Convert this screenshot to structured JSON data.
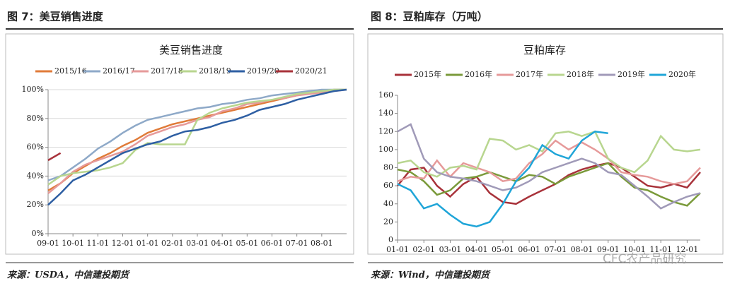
{
  "captions": [
    "图 7：美豆销售进度",
    "图 8：豆粕库存（万吨）"
  ],
  "sources": [
    "来源：USDA，中信建投期货",
    "来源：Wind，中信建投期货"
  ],
  "watermark": "CFC农产品研究",
  "chart_data": [
    {
      "type": "line",
      "title": "美豆销售进度",
      "categories": [
        "09-01",
        null,
        "10-01",
        null,
        "11-01",
        null,
        "12-01",
        null,
        "01-01",
        null,
        "02-01",
        null,
        "03-01",
        null,
        "04-01",
        null,
        "05-01",
        null,
        "06-01",
        null,
        "07-01",
        null,
        "08-01",
        null,
        null
      ],
      "ylim": [
        0,
        100
      ],
      "yticks": [
        {
          "value": 0,
          "label": "0%"
        },
        {
          "value": 20,
          "label": "20%"
        },
        {
          "value": 40,
          "label": "40%"
        },
        {
          "value": 60,
          "label": "60%"
        },
        {
          "value": 80,
          "label": "80%"
        },
        {
          "value": 100,
          "label": "100%"
        }
      ],
      "grid": true,
      "series": [
        {
          "name": "2015/16",
          "color": "#e07b39",
          "values": [
            30,
            35,
            42,
            47,
            52,
            56,
            61,
            65,
            70,
            73,
            76,
            78,
            80,
            82,
            84,
            86,
            88,
            90,
            92,
            94,
            96,
            98,
            99,
            100,
            100
          ]
        },
        {
          "name": "2016/17",
          "color": "#8ea9c8",
          "values": [
            37,
            40,
            46,
            52,
            59,
            64,
            70,
            75,
            79,
            81,
            83,
            85,
            87,
            88,
            90,
            91,
            93,
            94,
            96,
            97,
            98,
            99,
            100,
            100,
            100
          ]
        },
        {
          "name": "2017/18",
          "color": "#e69a9a",
          "values": [
            28,
            35,
            43,
            48,
            51,
            54,
            57,
            62,
            68,
            71,
            74,
            76,
            79,
            81,
            85,
            87,
            90,
            91,
            93,
            94,
            96,
            97,
            98,
            99,
            100
          ]
        },
        {
          "name": "2018/19",
          "color": "#b8d68f",
          "values": [
            34,
            40,
            42,
            43,
            44,
            46,
            49,
            58,
            63,
            62,
            62,
            62,
            79,
            84,
            87,
            89,
            91,
            92,
            93,
            95,
            97,
            98,
            99,
            100,
            100
          ]
        },
        {
          "name": "2019/20",
          "color": "#2e5fa3",
          "values": [
            20,
            28,
            37,
            41,
            46,
            51,
            56,
            59,
            62,
            64,
            68,
            71,
            72,
            74,
            77,
            79,
            82,
            86,
            88,
            90,
            93,
            95,
            97,
            99,
            100
          ]
        },
        {
          "name": "2020/21",
          "color": "#a8323a",
          "values": [
            51,
            56,
            null,
            null,
            null,
            null,
            null,
            null,
            null,
            null,
            null,
            null,
            null,
            null,
            null,
            null,
            null,
            null,
            null,
            null,
            null,
            null,
            null,
            null,
            null
          ]
        }
      ]
    },
    {
      "type": "line",
      "title": "豆粕库存",
      "categories": [
        "01-01",
        null,
        "02-01",
        null,
        "03-01",
        null,
        "04-01",
        null,
        "05-01",
        null,
        "06-01",
        null,
        "07-01",
        null,
        "08-01",
        null,
        "09-01",
        null,
        "10-01",
        null,
        "11-01",
        null,
        "12-01",
        null
      ],
      "ylim": [
        0,
        160
      ],
      "yticks": [
        0,
        20,
        40,
        60,
        80,
        100,
        120,
        140,
        160
      ],
      "grid": false,
      "series": [
        {
          "name": "2015年",
          "color": "#a8323a",
          "values": [
            60,
            78,
            80,
            60,
            48,
            62,
            70,
            52,
            42,
            40,
            48,
            55,
            62,
            72,
            78,
            82,
            85,
            80,
            70,
            60,
            58,
            62,
            58,
            75
          ]
        },
        {
          "name": "2016年",
          "color": "#7a9a3a",
          "values": [
            78,
            75,
            65,
            50,
            55,
            68,
            70,
            75,
            70,
            65,
            72,
            70,
            62,
            70,
            75,
            80,
            85,
            70,
            58,
            55,
            48,
            42,
            38,
            52
          ]
        },
        {
          "name": "2017年",
          "color": "#e69a9a",
          "values": [
            65,
            70,
            68,
            88,
            70,
            85,
            80,
            75,
            65,
            68,
            85,
            95,
            110,
            100,
            108,
            100,
            90,
            75,
            72,
            70,
            65,
            62,
            65,
            80
          ]
        },
        {
          "name": "2018年",
          "color": "#b8d68f",
          "values": [
            85,
            88,
            75,
            70,
            80,
            82,
            78,
            112,
            110,
            100,
            105,
            98,
            118,
            120,
            115,
            120,
            90,
            80,
            75,
            88,
            115,
            100,
            98,
            100
          ]
        },
        {
          "name": "2019年",
          "color": "#a09ab8",
          "values": [
            120,
            128,
            90,
            75,
            70,
            68,
            65,
            60,
            55,
            58,
            65,
            75,
            80,
            85,
            90,
            85,
            75,
            72,
            60,
            48,
            35,
            42,
            48,
            52
          ]
        },
        {
          "name": "2020年",
          "color": "#1fa5d8",
          "values": [
            62,
            55,
            35,
            40,
            28,
            18,
            15,
            20,
            40,
            65,
            80,
            105,
            95,
            90,
            110,
            120,
            118,
            null,
            null,
            null,
            null,
            null,
            null,
            null
          ]
        }
      ]
    }
  ]
}
